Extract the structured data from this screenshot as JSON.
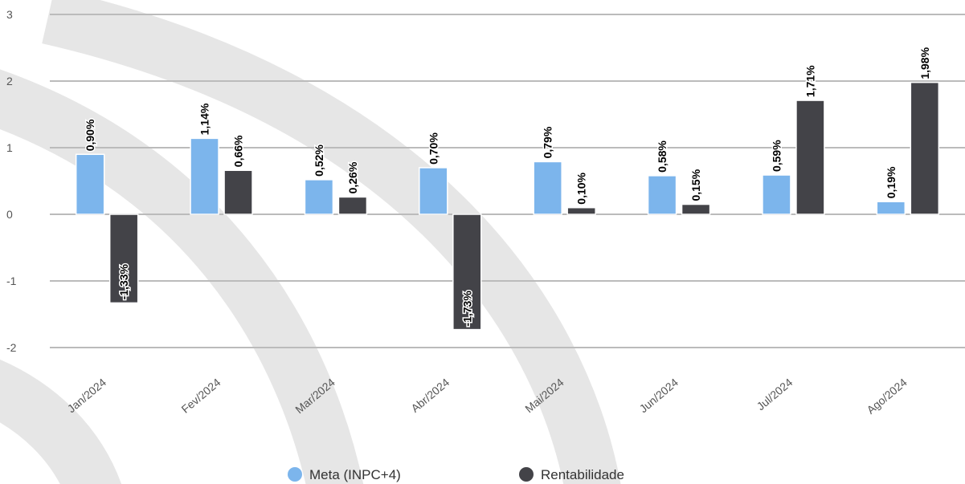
{
  "chart_data": {
    "type": "bar",
    "categories": [
      "Jan/2024",
      "Fev/2024",
      "Mar/2024",
      "Abr/2024",
      "Mai/2024",
      "Jun/2024",
      "Jul/2024",
      "Ago/2024"
    ],
    "series": [
      {
        "name": "Meta (INPC+4)",
        "color": "#7cb5ec",
        "values": [
          0.9,
          1.14,
          0.52,
          0.7,
          0.79,
          0.58,
          0.59,
          0.19
        ],
        "value_labels": [
          "0,90%",
          "1,14%",
          "0,52%",
          "0,70%",
          "0,79%",
          "0,58%",
          "0,59%",
          "0,19%"
        ]
      },
      {
        "name": "Rentabilidade",
        "color": "#434348",
        "values": [
          -1.33,
          0.66,
          0.26,
          -1.73,
          0.1,
          0.15,
          1.71,
          1.98
        ],
        "value_labels": [
          "-1,33%",
          "0,66%",
          "0,26%",
          "-1,73%",
          "0,10%",
          "0,15%",
          "1,71%",
          "1,98%"
        ]
      }
    ],
    "ylim": [
      -2,
      3
    ],
    "yticks": [
      -2,
      -1,
      0,
      1,
      2,
      3
    ],
    "grid": true
  }
}
